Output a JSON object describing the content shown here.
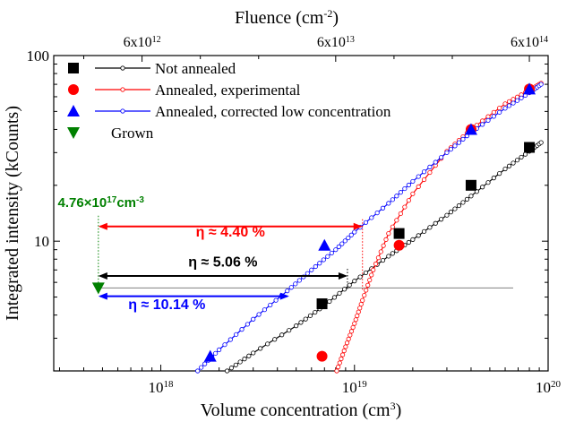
{
  "chart_data": {
    "type": "scatter",
    "title": "",
    "xlabel": "Volume concentration (cm",
    "xlabel_sup": "3",
    "xlabel_close": ")",
    "ylabel": "Integrated intensity (kCounts)",
    "top_axis_label": "Fluence (cm",
    "top_axis_label_sup": "-2",
    "top_axis_label_close": ")",
    "xscale": "log",
    "yscale": "log",
    "xlim": [
      2.8e+17,
      1e+20
    ],
    "ylim": [
      2.0,
      100
    ],
    "x_ticks": [
      {
        "value": 1e+18,
        "base": "10",
        "exp": "18"
      },
      {
        "value": 1e+19,
        "base": "10",
        "exp": "19"
      },
      {
        "value": 1e+20,
        "base": "10",
        "exp": "20"
      }
    ],
    "y_ticks": [
      {
        "value": 10,
        "label": "10"
      },
      {
        "value": 100,
        "label": "100"
      }
    ],
    "top_ticks": [
      {
        "x_value": 8e+17,
        "base": "6x10",
        "exp": "12"
      },
      {
        "x_value": 8e+18,
        "base": "6x10",
        "exp": "13"
      },
      {
        "x_value": 8e+19,
        "base": "6x10",
        "exp": "14"
      }
    ],
    "legend_position": "top-left",
    "series": [
      {
        "name": "Not annealed",
        "marker": "square",
        "color": "#000000",
        "line_color": "#000000",
        "points": [
          [
            6.8e+18,
            4.6
          ],
          [
            1.7e+19,
            11.0
          ],
          [
            4e+19,
            20.0
          ],
          [
            8e+19,
            32.0
          ]
        ]
      },
      {
        "name": "Annealed, experimental",
        "marker": "circle",
        "color": "#ff0000",
        "line_color": "#ff0000",
        "points": [
          [
            6.8e+18,
            2.4
          ],
          [
            1.7e+19,
            9.5
          ],
          [
            4e+19,
            40.0
          ],
          [
            8e+19,
            66.0
          ]
        ]
      },
      {
        "name": "Annealed, corrected low concentration",
        "marker": "triangle-up",
        "color": "#0000ff",
        "line_color": "#0000ff",
        "points": [
          [
            1.8e+18,
            2.4
          ],
          [
            7e+18,
            9.5
          ],
          [
            4e+19,
            40.0
          ],
          [
            8e+19,
            66.0
          ]
        ]
      },
      {
        "name": "Grown",
        "marker": "triangle-down",
        "color": "#008000",
        "line_color": null,
        "points": [
          [
            4.76e+17,
            5.6
          ]
        ]
      }
    ],
    "fits": [
      {
        "series": "Not annealed",
        "color": "#000000",
        "points": [
          [
            2.2e+18,
            2.0
          ],
          [
            3e+18,
            2.5
          ],
          [
            5e+18,
            3.5
          ],
          [
            7e+18,
            4.5
          ],
          [
            1e+19,
            6.1
          ],
          [
            1.5e+19,
            8.3
          ],
          [
            2e+19,
            10.2
          ],
          [
            3e+19,
            13.8
          ],
          [
            4e+19,
            17.5
          ],
          [
            6e+19,
            24.5
          ],
          [
            8e+19,
            30.5
          ],
          [
            9.2e+19,
            34.0
          ]
        ]
      },
      {
        "series": "Annealed, experimental",
        "color": "#ff0000",
        "points": [
          [
            8.1e+18,
            2.0
          ],
          [
            9e+18,
            2.7
          ],
          [
            1e+19,
            3.6
          ],
          [
            1.1e+19,
            4.8
          ],
          [
            1.25e+19,
            7.0
          ],
          [
            1.5e+19,
            11.0
          ],
          [
            2e+19,
            18.0
          ],
          [
            3e+19,
            30.5
          ],
          [
            4e+19,
            40.0
          ],
          [
            6e+19,
            55.0
          ],
          [
            8e+19,
            65.0
          ],
          [
            9.2e+19,
            71.0
          ]
        ]
      },
      {
        "series": "Annealed, corrected low concentration",
        "color": "#0000ff",
        "points": [
          [
            1.55e+18,
            2.0
          ],
          [
            2e+18,
            2.6
          ],
          [
            3e+18,
            3.8
          ],
          [
            4.5e+18,
            5.4
          ],
          [
            6e+18,
            7.0
          ],
          [
            8e+18,
            9.0
          ],
          [
            1e+19,
            11.2
          ],
          [
            1.5e+19,
            16.0
          ],
          [
            2e+19,
            21.0
          ],
          [
            3e+19,
            30.0
          ],
          [
            4e+19,
            38.5
          ],
          [
            6e+19,
            52.0
          ],
          [
            8e+19,
            63.0
          ],
          [
            9.2e+19,
            70.0
          ]
        ]
      }
    ],
    "reference_line": {
      "y": 5.6,
      "x_from": 4.76e+17,
      "x_to": 6.6e+19,
      "color": "#808080"
    },
    "vertical_marker": {
      "x": 4.76e+17,
      "y_from": 5.3,
      "y_to": 14.0,
      "color": "#008000"
    },
    "annotations": [
      {
        "id": "grown-conc",
        "text_main": "4.76×10",
        "text_sup": "17",
        "text_unit": "cm",
        "text_unit_sup": "-3",
        "color": "#008000",
        "x": 4.5e+17,
        "y": 15.3
      },
      {
        "id": "eta-red",
        "text": "η ≈ 4.40 %",
        "color": "#ff0000",
        "x_from": 4.76e+17,
        "x_to": 1.1e+19,
        "arrow_y": 12.0,
        "label_y": 10.6
      },
      {
        "id": "eta-black",
        "text": "η ≈ 5.06 %",
        "color": "#000000",
        "x_from": 4.76e+17,
        "x_to": 9.2e+18,
        "arrow_y": 6.5,
        "label_y": 7.3
      },
      {
        "id": "eta-blue",
        "text": "η ≈ 10.14 %",
        "color": "#0000ff",
        "x_from": 4.76e+17,
        "x_to": 4.6e+18,
        "arrow_y": 5.05,
        "label_y": 4.3
      }
    ]
  }
}
